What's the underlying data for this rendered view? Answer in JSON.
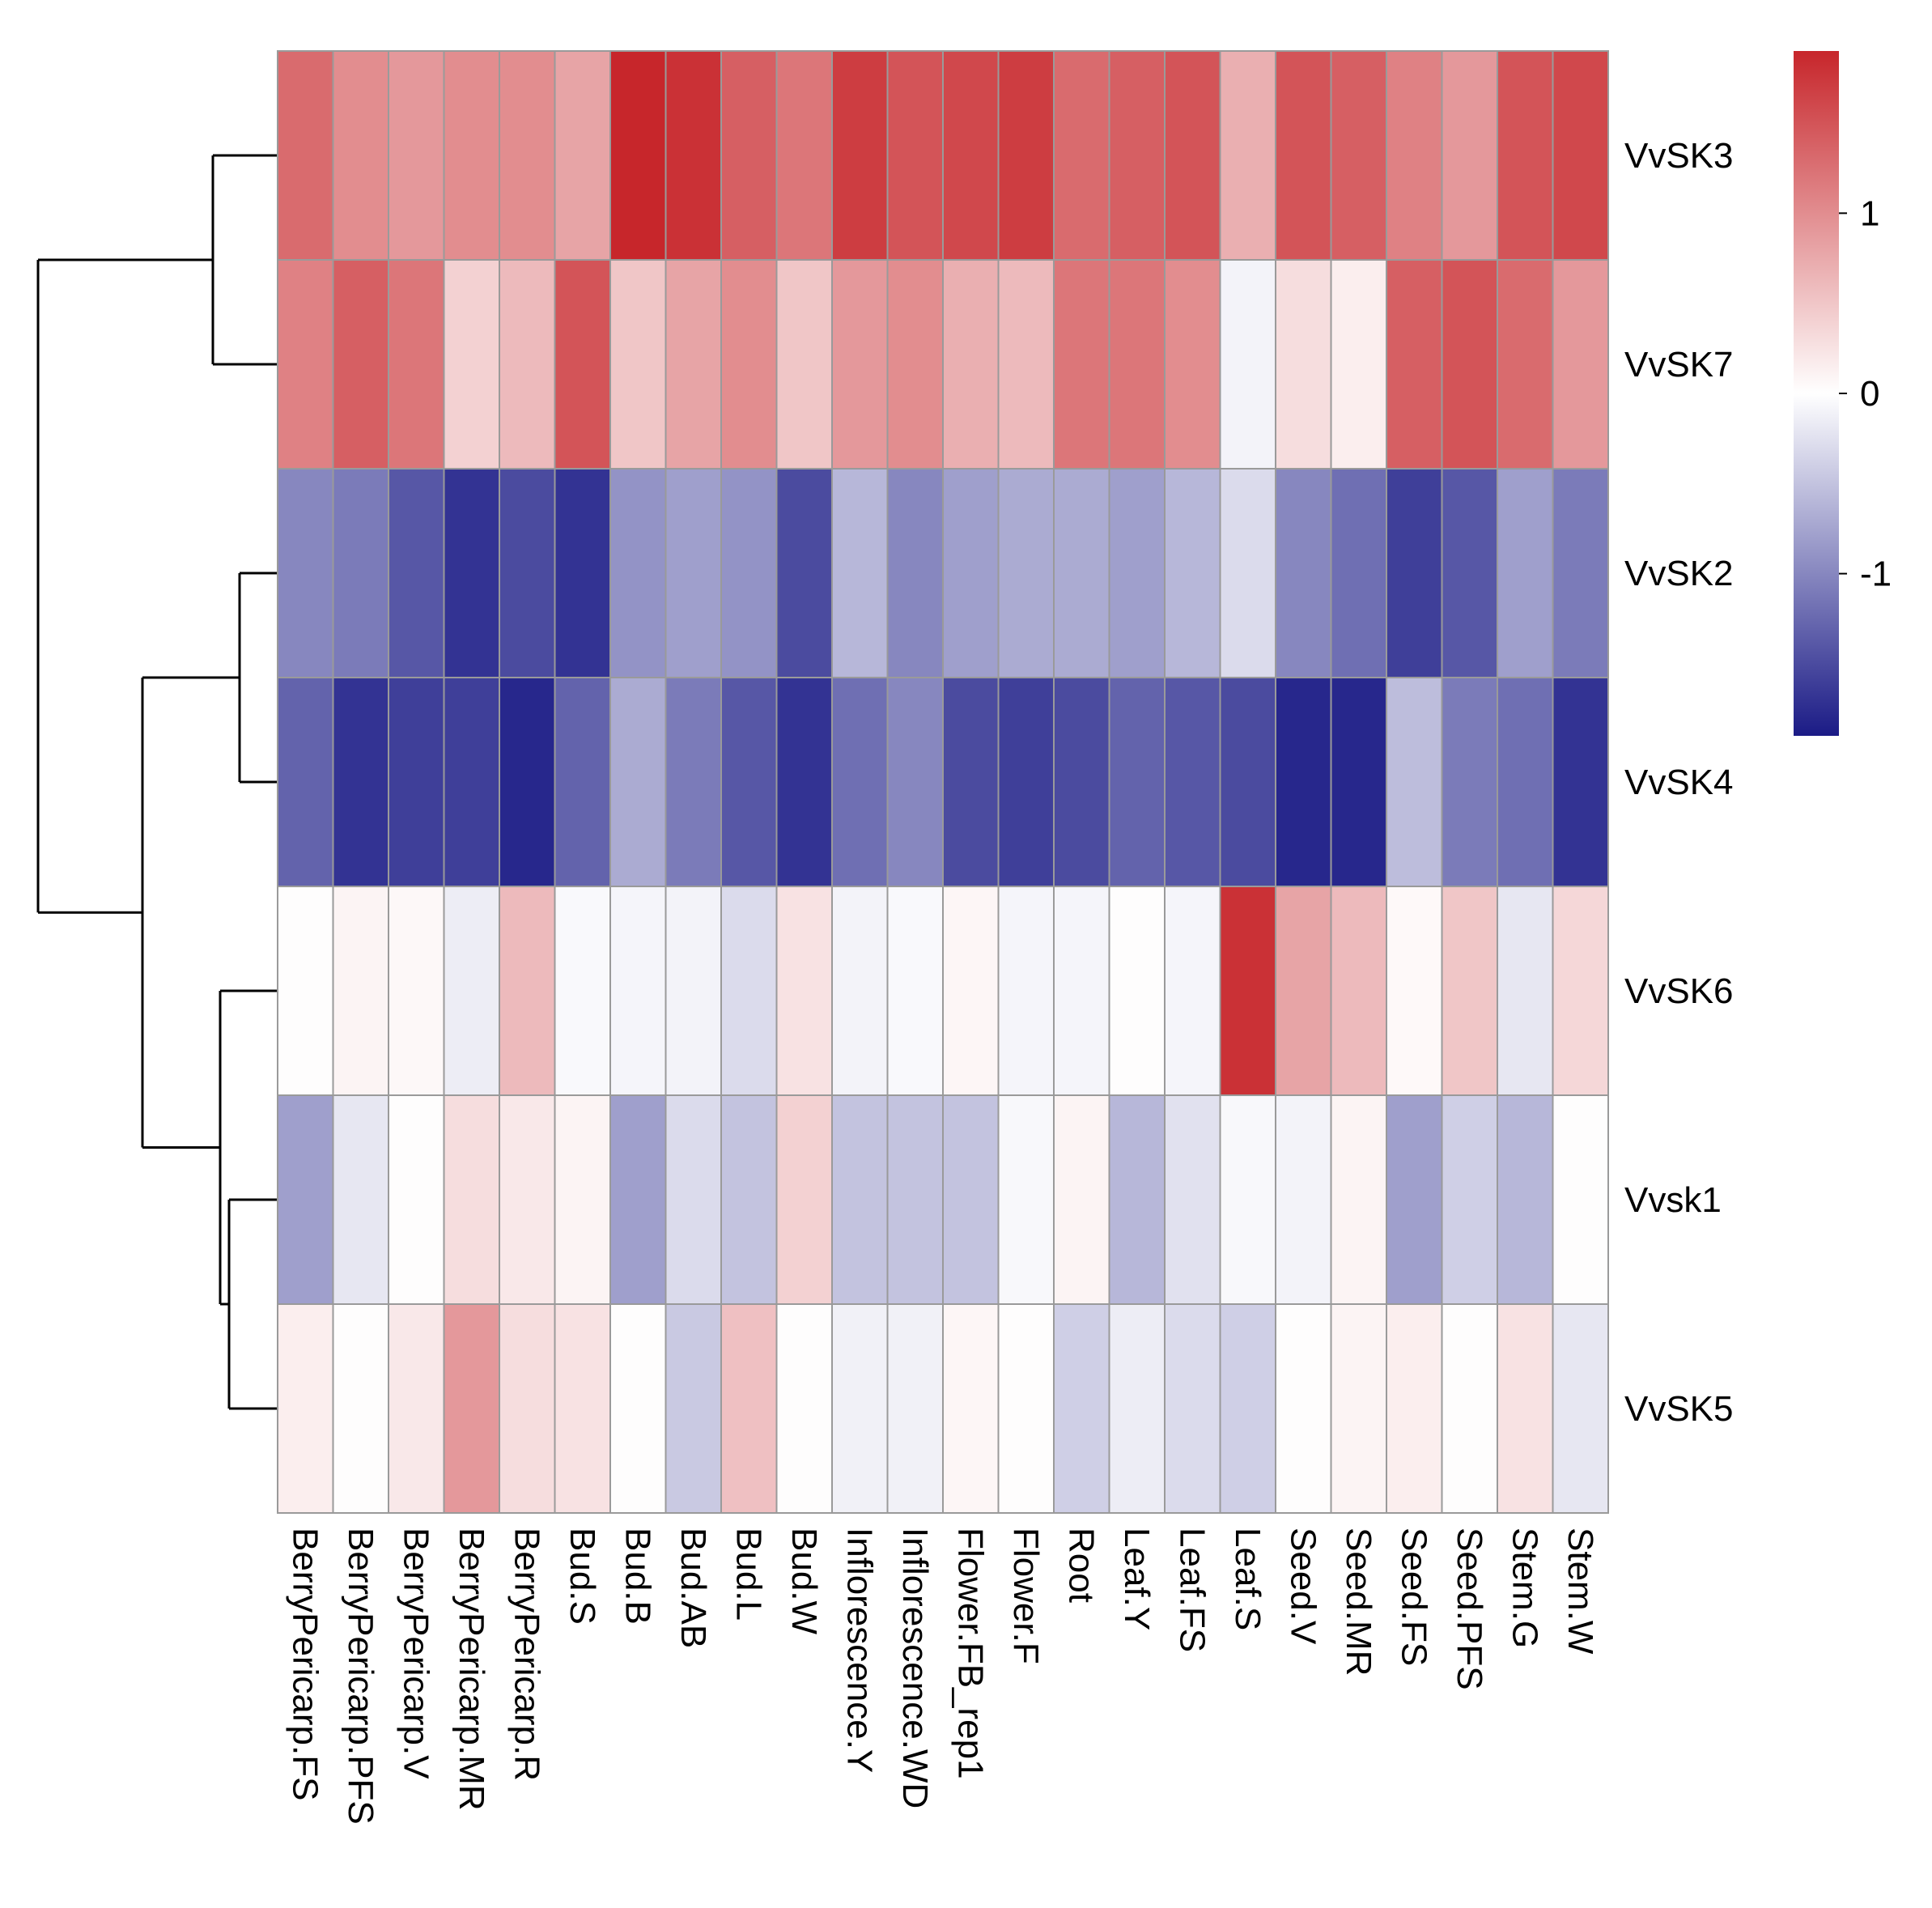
{
  "chart_data": {
    "type": "heatmap",
    "title": "",
    "rows": [
      "VvSK3",
      "VvSK7",
      "VvSK2",
      "VvSK4",
      "VvSK6",
      "Vvsk1",
      "VvSK5"
    ],
    "columns": [
      "BerryPericarp.FS",
      "BerryPericarp.PFS",
      "BerryPericarp.V",
      "BerryPericarp.MR",
      "BerryPericarp.R",
      "Bud.S",
      "Bud.B",
      "Bud.AB",
      "Bud.L",
      "Bud.W",
      "Inflorescence.Y",
      "Inflorescence.WD",
      "Flower.FB_rep1",
      "Flower.F",
      "Root",
      "Leaf.Y",
      "Leaf.FS",
      "Leaf.S",
      "Seed.V",
      "Seed.MR",
      "Seed.FS",
      "Seed.PFS",
      "Stem.G",
      "Stem.W"
    ],
    "values": [
      [
        1.3,
        1.0,
        0.9,
        1.0,
        1.0,
        0.8,
        1.9,
        1.8,
        1.4,
        1.2,
        1.7,
        1.5,
        1.6,
        1.7,
        1.3,
        1.4,
        1.5,
        0.7,
        1.5,
        1.4,
        1.1,
        0.9,
        1.5,
        1.6
      ],
      [
        1.1,
        1.4,
        1.2,
        0.4,
        0.6,
        1.5,
        0.5,
        0.8,
        1.0,
        0.5,
        0.9,
        1.0,
        0.7,
        0.6,
        1.2,
        1.2,
        1.0,
        -0.1,
        0.3,
        0.15,
        1.4,
        1.5,
        1.3,
        0.9
      ],
      [
        -1.0,
        -1.1,
        -1.4,
        -1.7,
        -1.5,
        -1.7,
        -0.9,
        -0.8,
        -0.9,
        -1.5,
        -0.6,
        -1.0,
        -0.8,
        -0.7,
        -0.7,
        -0.8,
        -0.6,
        -0.3,
        -1.0,
        -1.2,
        -1.6,
        -1.4,
        -0.8,
        -1.1
      ],
      [
        -1.3,
        -1.7,
        -1.6,
        -1.6,
        -1.8,
        -1.3,
        -0.7,
        -1.1,
        -1.4,
        -1.7,
        -1.2,
        -1.0,
        -1.5,
        -1.6,
        -1.5,
        -1.3,
        -1.4,
        -1.5,
        -1.8,
        -1.8,
        -0.55,
        -1.1,
        -1.2,
        -1.7
      ],
      [
        0.02,
        0.1,
        0.06,
        -0.15,
        0.6,
        -0.05,
        -0.08,
        -0.1,
        -0.3,
        0.25,
        -0.1,
        -0.05,
        0.08,
        -0.08,
        -0.08,
        0.02,
        -0.08,
        1.8,
        0.8,
        0.6,
        0.05,
        0.5,
        -0.2,
        0.35
      ],
      [
        -0.8,
        -0.2,
        0.02,
        0.3,
        0.2,
        0.1,
        -0.8,
        -0.3,
        -0.5,
        0.4,
        -0.5,
        -0.5,
        -0.5,
        -0.06,
        0.1,
        -0.6,
        -0.25,
        -0.06,
        -0.1,
        0.1,
        -0.8,
        -0.4,
        -0.6,
        0.02
      ],
      [
        0.15,
        0.02,
        0.2,
        0.9,
        0.3,
        0.25,
        0.02,
        -0.45,
        0.55,
        0.02,
        -0.12,
        -0.12,
        0.08,
        0.02,
        -0.4,
        -0.15,
        -0.3,
        -0.4,
        0.02,
        0.1,
        0.15,
        0.02,
        0.25,
        -0.2
      ]
    ],
    "colorbar": {
      "min": -1.9,
      "max": 1.9,
      "low_color": "#1b1b86",
      "mid_color": "#ffffff",
      "high_color": "#c7262b",
      "ticks": [
        1,
        0,
        -1
      ],
      "tick_labels": [
        "1",
        "0",
        "-1"
      ]
    },
    "row_dendrogram": {
      "clusters": [
        "((VvSK3, VvSK7), ((VvSK2, VvSK4), (VvSK6, (Vvsk1, VvSK5))))"
      ]
    },
    "cell_border_color": "#9a9a9a"
  }
}
